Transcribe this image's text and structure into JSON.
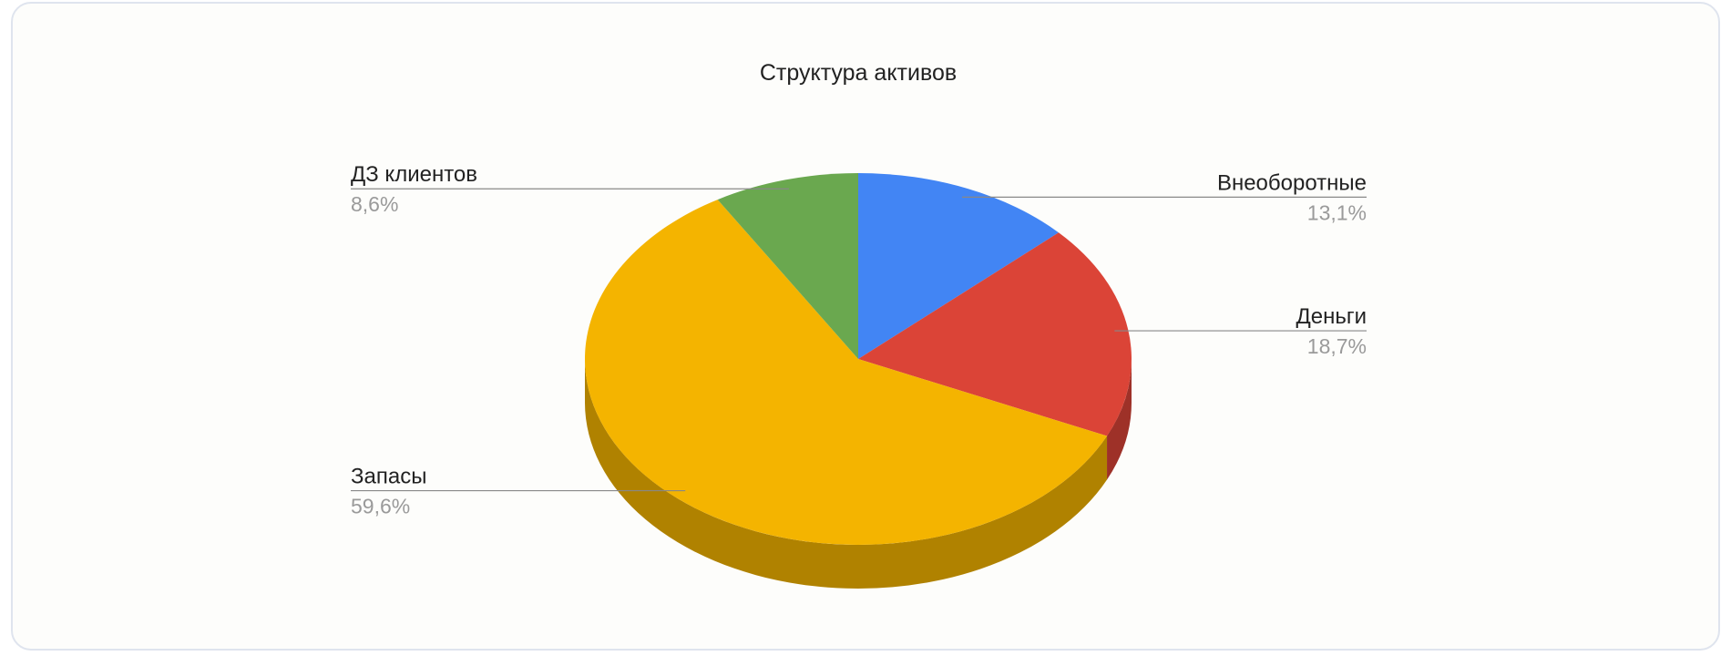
{
  "chart_data": {
    "type": "pie3d",
    "title": "Структура активов",
    "categories": [
      "Внеоборотные",
      "Деньги",
      "Запасы",
      "ДЗ клиентов"
    ],
    "values": [
      13.1,
      18.7,
      59.6,
      8.6
    ],
    "value_labels": [
      "13,1%",
      "18,7%",
      "59,6%",
      "8,6%"
    ],
    "colors": [
      "#4285f4",
      "#db4437",
      "#f4b400",
      "#6aa84f"
    ]
  }
}
